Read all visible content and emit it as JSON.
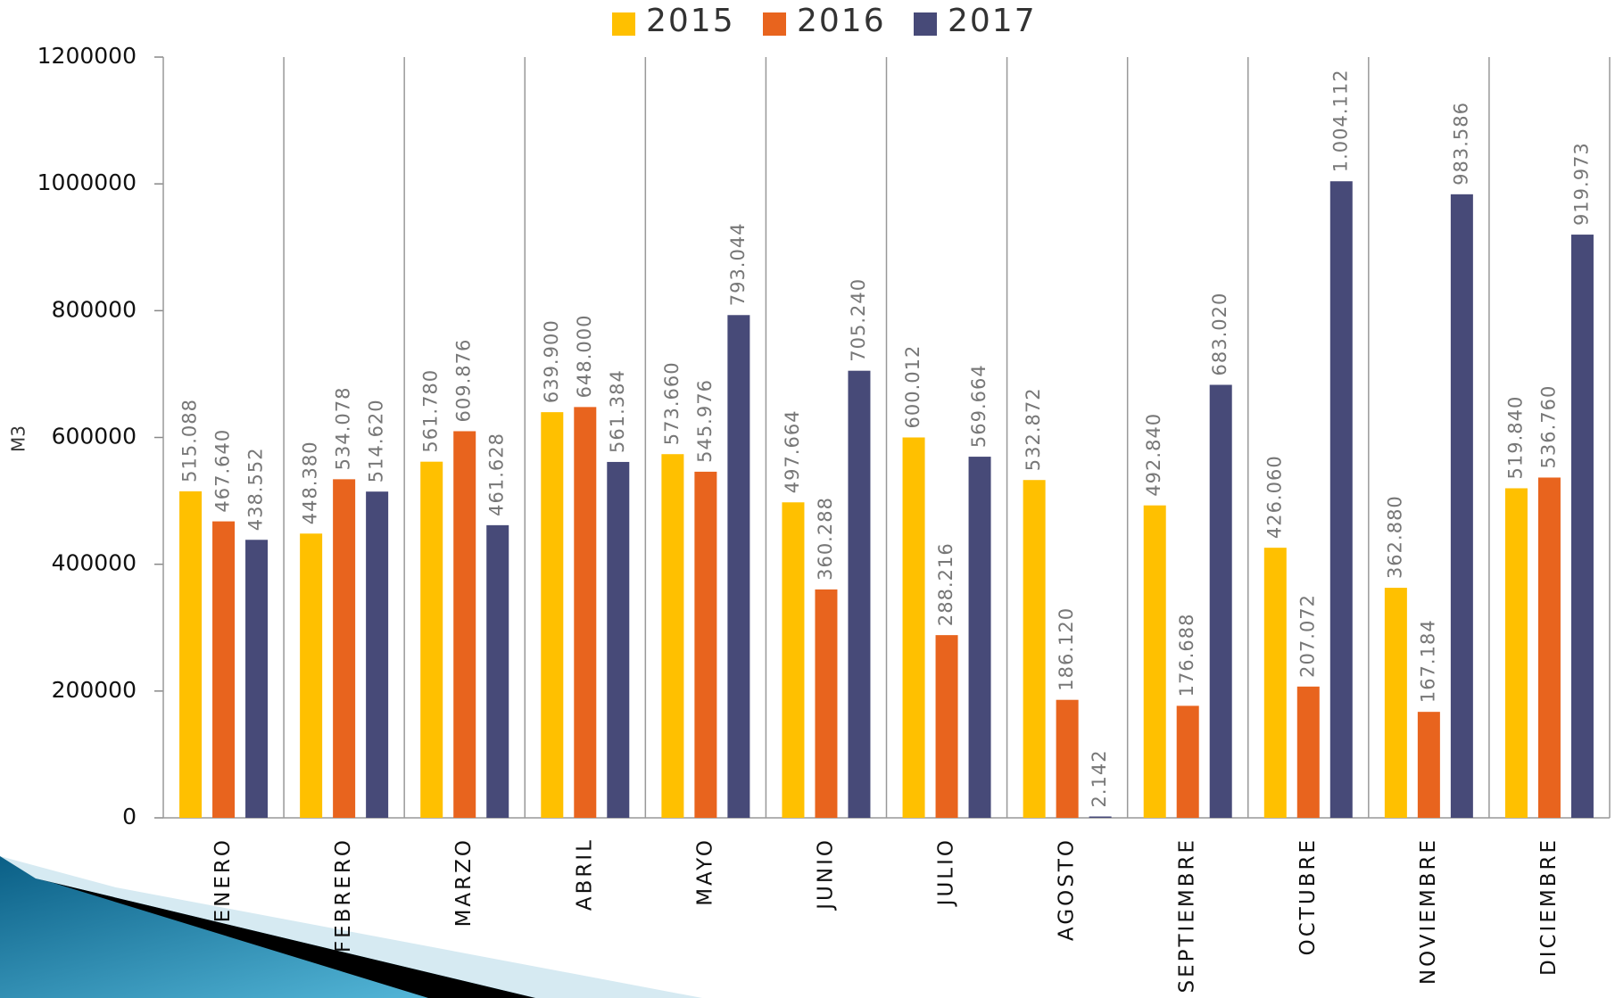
{
  "chart_data": {
    "type": "bar",
    "y_label": "M3",
    "categories": [
      "ENERO",
      "FEBRERO",
      "MARZO",
      "ABRIL",
      "MAYO",
      "JUNIO",
      "JULIO",
      "AGOSTO",
      "SEPTIEMBRE",
      "OCTUBRE",
      "NOVIEMBRE",
      "DICIEMBRE"
    ],
    "series": [
      {
        "name": "2015",
        "color": "#FFC000",
        "values": [
          515088,
          448380,
          561780,
          639900,
          573660,
          497664,
          600012,
          532872,
          492840,
          426060,
          362880,
          519840
        ],
        "value_labels": [
          "515.088",
          "448.380",
          "561.780",
          "639.900",
          "573.660",
          "497.664",
          "600.012",
          "532.872",
          "492.840",
          "426.060",
          "362.880",
          "519.840"
        ]
      },
      {
        "name": "2016",
        "color": "#E8641E",
        "values": [
          467640,
          534078,
          609876,
          648000,
          545976,
          360288,
          288216,
          186120,
          176688,
          207072,
          167184,
          536760
        ],
        "value_labels": [
          "467.640",
          "534.078",
          "609.876",
          "648.000",
          "545.976",
          "360.288",
          "288.216",
          "186.120",
          "176.688",
          "207.072",
          "167.184",
          "536.760"
        ]
      },
      {
        "name": "2017",
        "color": "#474A78",
        "values": [
          438552,
          514620,
          461628,
          561384,
          793044,
          705240,
          569664,
          2142,
          683020,
          1004112,
          983586,
          919973
        ],
        "value_labels": [
          "438.552",
          "514.620",
          "461.628",
          "561.384",
          "793.044",
          "705.240",
          "569.664",
          "2.142",
          "683.020",
          "1.004.112",
          "983.586",
          "919.973"
        ]
      }
    ],
    "ylim": [
      0,
      1200000
    ],
    "yticks": [
      0,
      200000,
      400000,
      600000,
      800000,
      1000000,
      1200000
    ],
    "grid": false
  }
}
